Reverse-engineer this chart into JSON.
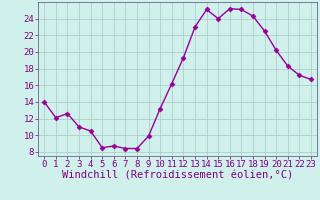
{
  "x": [
    0,
    1,
    2,
    3,
    4,
    5,
    6,
    7,
    8,
    9,
    10,
    11,
    12,
    13,
    14,
    15,
    16,
    17,
    18,
    19,
    20,
    21,
    22,
    23
  ],
  "y": [
    14.0,
    12.1,
    12.6,
    11.0,
    10.5,
    8.5,
    8.7,
    8.4,
    8.4,
    9.9,
    13.2,
    16.2,
    19.3,
    23.0,
    25.1,
    24.0,
    25.2,
    25.1,
    24.3,
    22.5,
    20.2,
    18.3,
    17.2,
    16.7
  ],
  "line_color": "#990099",
  "marker": "D",
  "markersize": 2.5,
  "linewidth": 1.0,
  "xlabel": "Windchill (Refroidissement éolien,°C)",
  "xlim": [
    -0.5,
    23.5
  ],
  "ylim": [
    7.5,
    26.0
  ],
  "yticks": [
    8,
    10,
    12,
    14,
    16,
    18,
    20,
    22,
    24
  ],
  "xtick_labels": [
    "0",
    "1",
    "2",
    "3",
    "4",
    "5",
    "6",
    "7",
    "8",
    "9",
    "10",
    "11",
    "12",
    "13",
    "14",
    "15",
    "16",
    "17",
    "18",
    "19",
    "20",
    "21",
    "22",
    "23"
  ],
  "bg_color": "#cff0eb",
  "grid_color": "#aac8c4",
  "xlabel_fontsize": 7.5,
  "tick_fontsize": 6.5,
  "tick_color": "#800080",
  "spine_color": "#666688"
}
